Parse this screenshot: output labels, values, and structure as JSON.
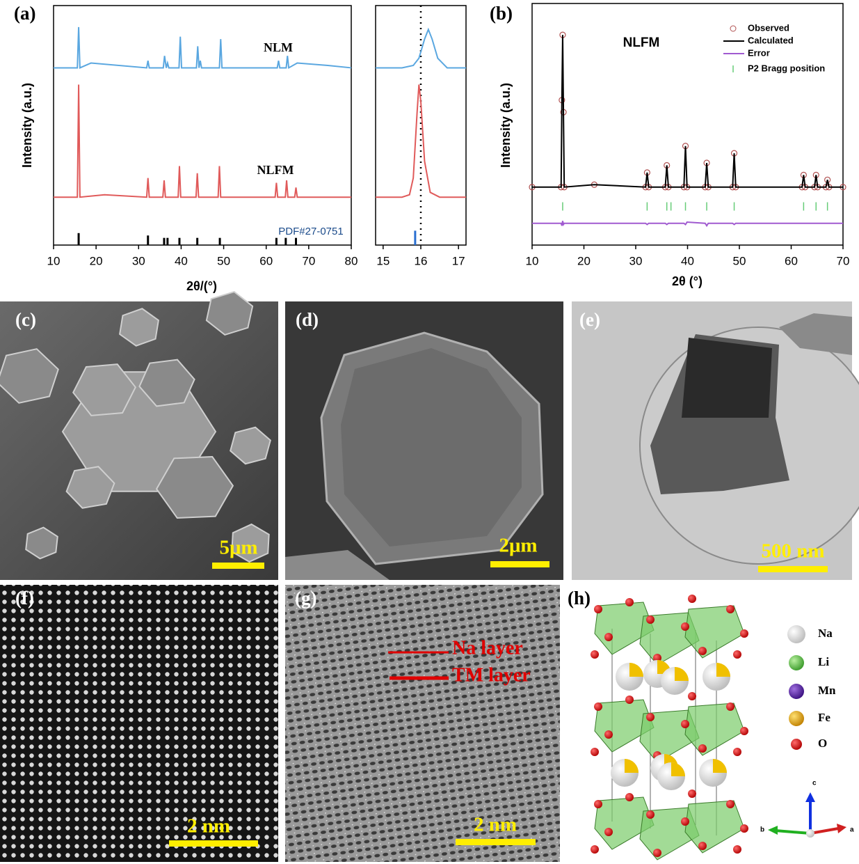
{
  "chart_data": [
    {
      "type": "line",
      "panel_label": "(a)",
      "xlabel": "2θ/(°)",
      "ylabel": "Intensity (a.u.)",
      "xlim": [
        10,
        80
      ],
      "xticks": [
        10,
        20,
        30,
        40,
        50,
        60,
        70,
        80
      ],
      "ylim": [
        0,
        100
      ],
      "series": [
        {
          "name": "NLM",
          "color": "#5aa7e0",
          "style": "line",
          "x": [
            10,
            15.6,
            15.9,
            16.2,
            18.8,
            31.9,
            32.2,
            32.5,
            35.8,
            36.1,
            36.5,
            36.8,
            37.1,
            39.5,
            39.8,
            40.1,
            43.6,
            43.9,
            44.2,
            44.5,
            44.8,
            49,
            49.3,
            49.6,
            62.6,
            62.9,
            63.2,
            64.7,
            65,
            65.3,
            67.3,
            74.5,
            80
          ],
          "values": [
            74,
            74,
            91,
            74,
            76,
            74,
            77,
            74,
            74,
            79,
            74,
            76,
            74,
            74,
            87,
            74,
            74,
            83,
            74,
            77,
            74,
            74,
            86,
            74,
            74,
            77,
            74,
            74,
            79,
            74,
            76,
            75,
            74
          ]
        },
        {
          "name": "NLFM",
          "color": "#e05a5a",
          "style": "line",
          "x": [
            10,
            15.6,
            15.9,
            16.2,
            22,
            31.9,
            32.2,
            32.5,
            35.7,
            36,
            36.3,
            39.3,
            39.6,
            39.9,
            43.5,
            43.8,
            44.1,
            48.7,
            49,
            49.3,
            62.1,
            62.4,
            62.7,
            64.5,
            64.8,
            65.1,
            66.7,
            67,
            67.3,
            80
          ],
          "values": [
            20,
            20,
            67,
            20,
            21,
            20,
            28,
            20,
            20,
            27,
            20,
            20,
            33,
            20,
            20,
            30,
            20,
            20,
            33,
            20,
            20,
            26,
            20,
            20,
            27,
            20,
            20,
            24,
            20,
            20
          ]
        },
        {
          "name": "PDF#27-0751",
          "color": "#000000",
          "style": "stem",
          "x": [
            15.9,
            32.2,
            36,
            36.8,
            39.6,
            43.8,
            49.1,
            62.4,
            64.6,
            67
          ],
          "values": [
            5,
            4,
            3,
            3,
            3,
            3,
            3,
            3,
            3,
            3
          ]
        }
      ]
    },
    {
      "type": "line",
      "xlim": [
        14.8,
        17.2
      ],
      "xticks": [
        15,
        16,
        17
      ],
      "ylim": [
        0,
        100
      ],
      "vline": 16,
      "series": [
        {
          "color": "#5aa7e0",
          "style": "line",
          "x": [
            14.8,
            15.5,
            15.8,
            15.95,
            16.1,
            16.2,
            16.3,
            16.45,
            16.7,
            17.2
          ],
          "values": [
            74,
            74,
            75,
            78,
            86,
            90,
            86,
            78,
            74,
            74
          ]
        },
        {
          "color": "#e05a5a",
          "style": "line",
          "x": [
            14.8,
            15.5,
            15.7,
            15.8,
            15.9,
            15.95,
            16.0,
            16.1,
            16.25,
            16.5,
            17.2
          ],
          "values": [
            20,
            20,
            21,
            28,
            55,
            67,
            60,
            35,
            22,
            20,
            20
          ]
        },
        {
          "color": "#2a6fd0",
          "style": "stem",
          "x": [
            15.85
          ],
          "values": [
            6
          ]
        }
      ]
    },
    {
      "type": "line",
      "panel_label": "(b)",
      "xlabel": "2θ (°)",
      "ylabel": "Intensity (a.u.)",
      "annotation": "NLFM",
      "legend": true,
      "xlim": [
        10,
        70
      ],
      "xticks": [
        10,
        20,
        30,
        40,
        50,
        60,
        70
      ],
      "ylim": [
        0,
        100
      ],
      "series": [
        {
          "name": "Observed",
          "color": "#b05050",
          "style": "markers",
          "x": [
            10,
            15.6,
            15.75,
            15.9,
            16.05,
            16.2,
            22,
            31.9,
            32.2,
            32.5,
            35.7,
            36,
            36.3,
            39.3,
            39.6,
            39.9,
            43.4,
            43.7,
            44,
            48.7,
            49,
            49.3,
            62.1,
            62.4,
            62.7,
            64.5,
            64.8,
            65.1,
            66.7,
            67,
            67.3,
            70
          ],
          "values": [
            24,
            24,
            60,
            87,
            55,
            24,
            25,
            24,
            30,
            24,
            24,
            33,
            24,
            24,
            41,
            24,
            24,
            34,
            24,
            24,
            38,
            24,
            24,
            29,
            24,
            24,
            29,
            24,
            24,
            27,
            24,
            24
          ]
        },
        {
          "name": "Calculated",
          "color": "#000000",
          "style": "line",
          "x": [
            10,
            15.6,
            15.75,
            15.9,
            16.05,
            16.2,
            22,
            31.9,
            32.2,
            32.5,
            35.7,
            36,
            36.3,
            39.3,
            39.6,
            39.9,
            43.4,
            43.7,
            44,
            48.7,
            49,
            49.3,
            62.1,
            62.4,
            62.7,
            64.5,
            64.8,
            65.1,
            66.7,
            67,
            67.3,
            70
          ],
          "values": [
            24,
            24,
            60,
            87,
            55,
            24,
            25,
            24,
            30,
            24,
            24,
            33,
            24,
            24,
            41,
            24,
            24,
            34,
            24,
            24,
            38,
            24,
            24,
            29,
            24,
            24,
            29,
            24,
            24,
            27,
            24,
            24
          ]
        },
        {
          "name": "Error",
          "color": "#a05ad0",
          "style": "line",
          "x": [
            10,
            15.6,
            15.75,
            15.9,
            16.05,
            16.2,
            22,
            31.9,
            32.2,
            32.5,
            35.7,
            36,
            36.3,
            39.3,
            39.6,
            39.9,
            43.4,
            43.7,
            44,
            48.7,
            49,
            49.3,
            62.1,
            62.4,
            62.7,
            64.5,
            64.8,
            65.1,
            66.7,
            67,
            67.3,
            70
          ],
          "values": [
            9,
            9,
            8,
            10,
            8.5,
            9,
            9,
            9,
            8.5,
            9,
            9,
            8.5,
            9,
            9,
            8.5,
            9.5,
            9,
            8,
            9,
            9,
            8.5,
            9,
            9,
            9,
            9,
            9,
            9,
            9,
            9,
            9,
            9,
            9
          ]
        },
        {
          "name": "P2 Bragg position",
          "color": "#66cc77",
          "style": "tick",
          "x": [
            15.9,
            32.2,
            36,
            36.8,
            39.6,
            43.7,
            49,
            62.4,
            64.8,
            67
          ],
          "values": [
            16,
            16,
            16,
            16,
            16,
            16,
            16,
            16,
            16,
            16
          ]
        }
      ]
    }
  ],
  "images": [
    {
      "label": "(c)",
      "scale_bar": "5μm"
    },
    {
      "label": "(d)",
      "scale_bar": "2μm"
    },
    {
      "label": "(e)",
      "scale_bar": "500 nm"
    },
    {
      "label": "(f)",
      "scale_bar": "2 nm"
    },
    {
      "label": "(g)",
      "scale_bar": "2 nm",
      "annotations": [
        "Na layer",
        "TM layer"
      ]
    },
    {
      "label": "(h)",
      "legend": [
        "Na",
        "Li",
        "Mn",
        "Fe",
        "O"
      ],
      "axes": [
        "c",
        "b",
        "a"
      ]
    }
  ]
}
